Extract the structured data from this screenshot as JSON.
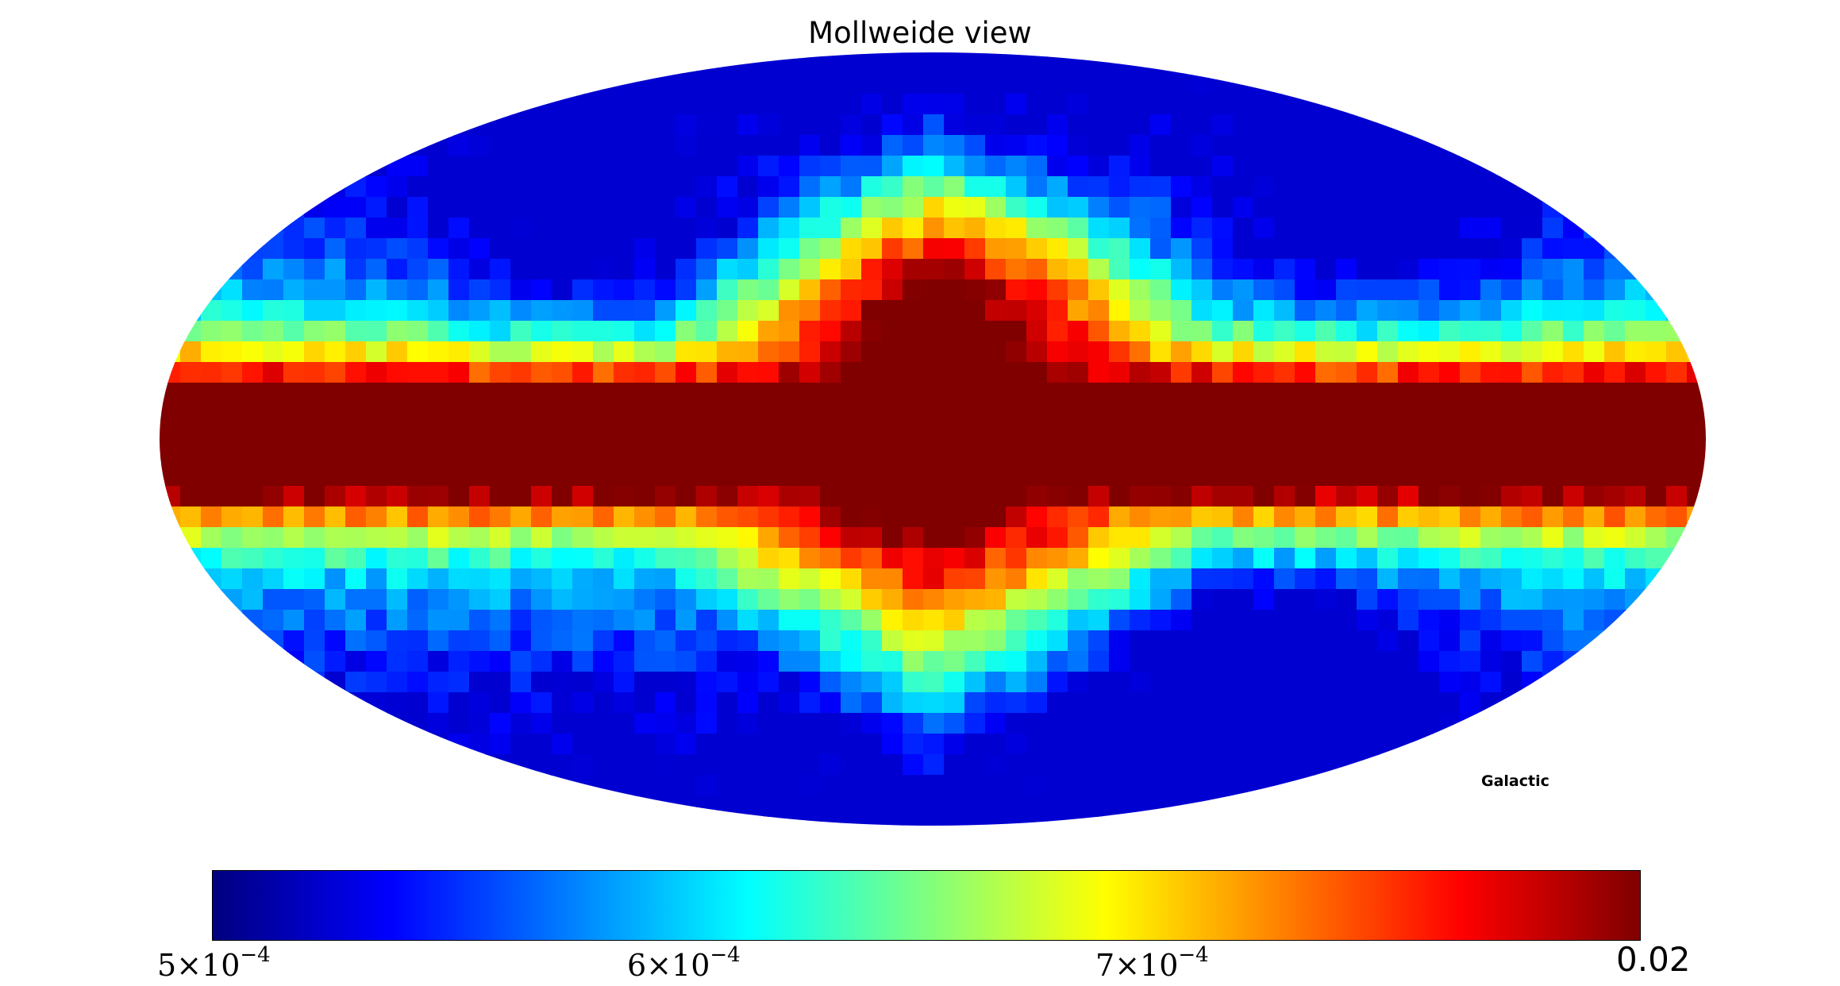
{
  "title": "Mollweide view",
  "coordinate_system": "Galactic",
  "projection": "Mollweide",
  "colormap": {
    "name": "jet",
    "stops": [
      "#00007f",
      "#0000ff",
      "#007fff",
      "#00ffff",
      "#7fff7f",
      "#ffff00",
      "#ff7f00",
      "#ff0000",
      "#7f0000"
    ]
  },
  "colorbar": {
    "ticks": [
      {
        "base": "5",
        "times": "×10",
        "exponent": "−4",
        "value": 0.0005
      },
      {
        "base": "6",
        "times": "×10",
        "exponent": "−4",
        "value": 0.0006
      },
      {
        "base": "7",
        "times": "×10",
        "exponent": "−4",
        "value": 0.0007
      }
    ],
    "max_label": "0.02",
    "min_value": 0.0005,
    "max_value": 0.02,
    "scale": "log"
  }
}
